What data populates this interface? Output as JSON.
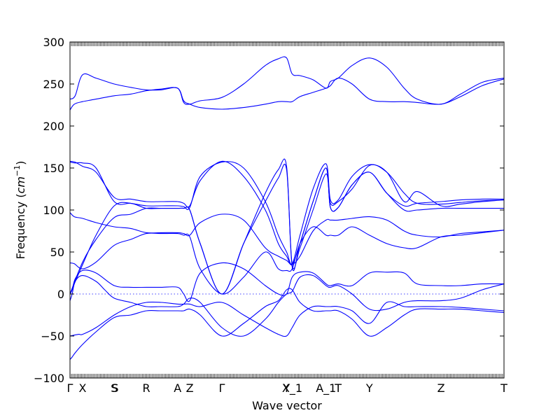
{
  "chart_data": {
    "type": "line",
    "xlabel": "Wave vector",
    "ylabel": "Frequency",
    "ylabel_unit": "cm",
    "ylabel_unit_exp": "−1",
    "ylim": [
      -100,
      300
    ],
    "yticks": [
      300,
      250,
      200,
      150,
      100,
      50,
      0,
      -50,
      -100
    ],
    "ytick_labels": [
      "300",
      "250",
      "200",
      "150",
      "100",
      "50",
      "0",
      "−50",
      "−100"
    ],
    "zero_line": true,
    "kpoint_labels": [
      {
        "label": "Γ",
        "x": 0.0
      },
      {
        "label": "X",
        "x": 0.029
      },
      {
        "label": "S",
        "x": 0.102
      },
      {
        "label": "S",
        "x": 0.104
      },
      {
        "label": "R",
        "x": 0.176
      },
      {
        "label": "A",
        "x": 0.248
      },
      {
        "label": "Z",
        "x": 0.276
      },
      {
        "label": "Γ",
        "x": 0.35
      },
      {
        "label": "Y",
        "x": 0.499
      },
      {
        "label": "X_1",
        "x": 0.512
      },
      {
        "label": "A_1",
        "x": 0.59
      },
      {
        "label": "T",
        "x": 0.618
      },
      {
        "label": "Y",
        "x": 0.69
      },
      {
        "label": "Z",
        "x": 0.855
      },
      {
        "label": "T",
        "x": 1.0
      }
    ],
    "series": [
      {
        "x": [
          0,
          0.005,
          0.012,
          0.029,
          0.06,
          0.102,
          0.14,
          0.176,
          0.21,
          0.248,
          0.262,
          0.276,
          0.3,
          0.35,
          0.4,
          0.45,
          0.48,
          0.499,
          0.512,
          0.53,
          0.56,
          0.59,
          0.6,
          0.618,
          0.65,
          0.69,
          0.73,
          0.77,
          0.8,
          0.855,
          0.9,
          0.95,
          1.0
        ],
        "y": [
          -78,
          -75,
          -70,
          -60,
          -45,
          -28,
          -25,
          -20,
          -20,
          -20,
          -20,
          -18,
          -25,
          -50,
          -35,
          -15,
          -8,
          5,
          5,
          -10,
          -20,
          -20,
          -20,
          -20,
          -30,
          -50,
          -40,
          -25,
          -18,
          -18,
          -18,
          -20,
          -22
        ]
      },
      {
        "x": [
          0,
          0.02,
          0.029,
          0.06,
          0.102,
          0.14,
          0.176,
          0.21,
          0.248,
          0.262,
          0.276,
          0.3,
          0.35,
          0.4,
          0.45,
          0.48,
          0.499,
          0.512,
          0.53,
          0.56,
          0.59,
          0.6,
          0.618,
          0.65,
          0.69,
          0.73,
          0.77,
          0.8,
          0.855,
          0.9,
          0.95,
          1.0
        ],
        "y": [
          -50,
          -48,
          -48,
          -40,
          -25,
          -15,
          -10,
          -10,
          -12,
          -12,
          -12,
          -15,
          -10,
          -25,
          -40,
          -48,
          -50,
          -40,
          -25,
          -15,
          -15,
          -15,
          -15,
          -20,
          -35,
          -10,
          -15,
          -15,
          -15,
          -16,
          -18,
          -20
        ]
      },
      {
        "x": [
          0,
          0.005,
          0.012,
          0.029,
          0.06,
          0.08,
          0.102,
          0.14,
          0.176,
          0.21,
          0.248,
          0.262,
          0.276,
          0.3,
          0.35,
          0.4,
          0.45,
          0.48,
          0.499,
          0.512,
          0.53,
          0.56,
          0.59,
          0.6,
          0.618,
          0.65,
          0.69,
          0.73,
          0.77,
          0.8,
          0.855,
          0.9,
          0.95,
          1.0
        ],
        "y": [
          -8,
          0,
          15,
          22,
          15,
          5,
          -5,
          -10,
          -15,
          -15,
          -15,
          -12,
          -5,
          -10,
          -40,
          -50,
          -30,
          -10,
          0,
          3,
          20,
          22,
          10,
          8,
          10,
          0,
          -18,
          -18,
          -10,
          -8,
          -8,
          -5,
          5,
          12
        ]
      },
      {
        "x": [
          0,
          0.005,
          0.012,
          0.029,
          0.06,
          0.102,
          0.14,
          0.176,
          0.21,
          0.248,
          0.262,
          0.276,
          0.3,
          0.35,
          0.4,
          0.45,
          0.48,
          0.499,
          0.512,
          0.53,
          0.56,
          0.59,
          0.6,
          0.618,
          0.65,
          0.69,
          0.73,
          0.77,
          0.8,
          0.855,
          0.9,
          0.95,
          1.0
        ],
        "y": [
          0,
          5,
          18,
          28,
          25,
          10,
          8,
          8,
          8,
          8,
          0,
          -8,
          25,
          37,
          30,
          10,
          0,
          0,
          20,
          26,
          25,
          12,
          10,
          12,
          10,
          25,
          26,
          25,
          12,
          10,
          10,
          12,
          12
        ]
      },
      {
        "x": [
          0,
          0.01,
          0.029,
          0.06,
          0.102,
          0.14,
          0.176,
          0.21,
          0.248,
          0.262,
          0.276,
          0.3,
          0.35,
          0.4,
          0.45,
          0.48,
          0.499,
          0.512,
          0.53,
          0.56,
          0.59,
          0.6,
          0.618,
          0.65,
          0.69,
          0.73,
          0.77,
          0.8,
          0.855,
          0.9,
          0.95,
          1.0
        ],
        "y": [
          37,
          36,
          30,
          38,
          58,
          65,
          72,
          72,
          72,
          70,
          68,
          30,
          0,
          20,
          50,
          30,
          28,
          30,
          60,
          80,
          70,
          70,
          70,
          80,
          70,
          60,
          55,
          55,
          68,
          70,
          73,
          76
        ]
      },
      {
        "x": [
          0,
          0.01,
          0.029,
          0.06,
          0.102,
          0.14,
          0.176,
          0.21,
          0.248,
          0.262,
          0.276,
          0.3,
          0.35,
          0.4,
          0.45,
          0.48,
          0.499,
          0.512,
          0.53,
          0.56,
          0.59,
          0.6,
          0.618,
          0.65,
          0.69,
          0.73,
          0.77,
          0.8,
          0.855,
          0.9,
          0.95,
          1.0
        ],
        "y": [
          97,
          92,
          90,
          85,
          80,
          78,
          73,
          73,
          73,
          72,
          70,
          85,
          95,
          88,
          55,
          45,
          40,
          35,
          45,
          75,
          88,
          88,
          88,
          90,
          92,
          88,
          75,
          70,
          68,
          72,
          74,
          76
        ]
      },
      {
        "x": [
          0,
          0.029,
          0.06,
          0.102,
          0.14,
          0.176,
          0.21,
          0.248,
          0.262,
          0.276,
          0.3,
          0.35,
          0.4,
          0.45,
          0.48,
          0.499,
          0.512,
          0.53,
          0.56,
          0.59,
          0.6,
          0.618,
          0.65,
          0.69,
          0.73,
          0.77,
          0.8,
          0.855,
          0.9,
          0.95,
          1.0
        ],
        "y": [
          0,
          35,
          70,
          105,
          108,
          102,
          102,
          102,
          102,
          100,
          60,
          0,
          60,
          120,
          148,
          152,
          32,
          60,
          110,
          150,
          103,
          103,
          130,
          145,
          120,
          100,
          100,
          102,
          102,
          102,
          102
        ]
      },
      {
        "x": [
          0,
          0.029,
          0.06,
          0.102,
          0.14,
          0.176,
          0.21,
          0.248,
          0.262,
          0.276,
          0.3,
          0.35,
          0.4,
          0.45,
          0.48,
          0.499,
          0.512,
          0.53,
          0.56,
          0.59,
          0.6,
          0.618,
          0.65,
          0.69,
          0.73,
          0.77,
          0.8,
          0.855,
          0.9,
          0.95,
          1.0
        ],
        "y": [
          0,
          38,
          65,
          91,
          95,
          102,
          102,
          102,
          102,
          100,
          60,
          0,
          60,
          110,
          138,
          148,
          35,
          55,
          100,
          143,
          108,
          110,
          125,
          153,
          145,
          120,
          108,
          107,
          109,
          111,
          112
        ]
      },
      {
        "x": [
          0,
          0.012,
          0.029,
          0.06,
          0.102,
          0.14,
          0.176,
          0.21,
          0.248,
          0.262,
          0.276,
          0.3,
          0.35,
          0.4,
          0.45,
          0.48,
          0.499,
          0.512,
          0.53,
          0.56,
          0.59,
          0.6,
          0.618,
          0.65,
          0.69,
          0.73,
          0.77,
          0.8,
          0.855,
          0.9,
          0.95,
          1.0
        ],
        "y": [
          158,
          157,
          152,
          145,
          115,
          113,
          110,
          110,
          110,
          108,
          105,
          135,
          158,
          140,
          100,
          60,
          45,
          35,
          60,
          110,
          150,
          103,
          103,
          130,
          145,
          120,
          105,
          108,
          110,
          112,
          113,
          113
        ]
      },
      {
        "x": [
          0,
          0.012,
          0.029,
          0.06,
          0.102,
          0.14,
          0.176,
          0.21,
          0.248,
          0.262,
          0.276,
          0.3,
          0.35,
          0.4,
          0.45,
          0.48,
          0.499,
          0.512,
          0.53,
          0.56,
          0.59,
          0.6,
          0.618,
          0.65,
          0.69,
          0.73,
          0.77,
          0.8,
          0.855,
          0.9,
          0.95,
          1.0
        ],
        "y": [
          157,
          156,
          156,
          150,
          110,
          108,
          105,
          105,
          105,
          104,
          103,
          140,
          157,
          150,
          110,
          70,
          50,
          36,
          70,
          125,
          155,
          112,
          112,
          140,
          154,
          145,
          110,
          122,
          105,
          107,
          110,
          112
        ]
      },
      {
        "x": [
          0,
          0.01,
          0.029,
          0.06,
          0.102,
          0.14,
          0.176,
          0.21,
          0.248,
          0.262,
          0.276,
          0.3,
          0.35,
          0.4,
          0.45,
          0.48,
          0.499,
          0.512,
          0.53,
          0.56,
          0.59,
          0.6,
          0.618,
          0.65,
          0.69,
          0.73,
          0.77,
          0.8,
          0.855,
          0.9,
          0.95,
          1.0
        ],
        "y": [
          219,
          226,
          229,
          232,
          236,
          238,
          242,
          244,
          245,
          230,
          226,
          222,
          220,
          222,
          226,
          229,
          229,
          229,
          235,
          240,
          245,
          248,
          257,
          250,
          232,
          229,
          229,
          228,
          226,
          235,
          248,
          256
        ]
      },
      {
        "x": [
          0,
          0.012,
          0.029,
          0.06,
          0.102,
          0.14,
          0.176,
          0.21,
          0.248,
          0.262,
          0.276,
          0.3,
          0.35,
          0.4,
          0.45,
          0.48,
          0.499,
          0.512,
          0.53,
          0.56,
          0.59,
          0.6,
          0.618,
          0.65,
          0.69,
          0.73,
          0.77,
          0.8,
          0.855,
          0.9,
          0.95,
          1.0
        ],
        "y": [
          232,
          236,
          261,
          257,
          250,
          246,
          243,
          243,
          245,
          228,
          226,
          230,
          234,
          250,
          272,
          280,
          281,
          262,
          260,
          255,
          245,
          253,
          257,
          272,
          281,
          270,
          245,
          232,
          226,
          238,
          252,
          257
        ]
      }
    ]
  }
}
